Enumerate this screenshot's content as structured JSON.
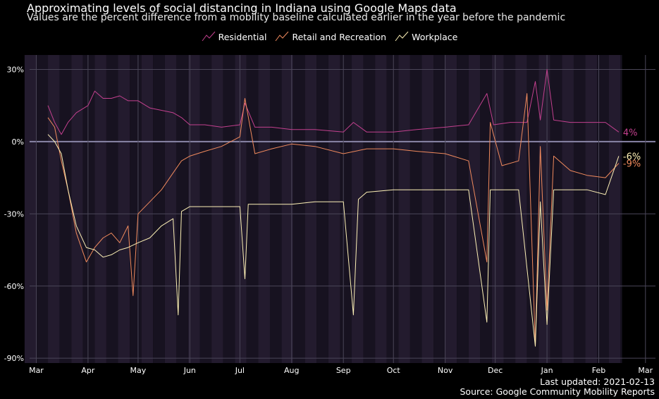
{
  "chart_data": {
    "type": "line",
    "title": "Approximating levels of social distancing in Indiana using Google Maps data",
    "subtitle": "Values are the percent difference from a mobility baseline calculated earlier in the year before the pandemic",
    "ylim": [
      -92,
      36
    ],
    "y_ticks": [
      {
        "value": 30,
        "label": "30%"
      },
      {
        "value": 0,
        "label": "0%"
      },
      {
        "value": -30,
        "label": "-30%"
      },
      {
        "value": -60,
        "label": "-60%"
      },
      {
        "value": -90,
        "label": "-90%"
      }
    ],
    "x_range": [
      "2020-02-26",
      "2021-03-07"
    ],
    "x_ticks": [
      {
        "date": "2020-03-01",
        "label": "Mar"
      },
      {
        "date": "2020-04-01",
        "label": "Apr"
      },
      {
        "date": "2020-05-01",
        "label": "May"
      },
      {
        "date": "2020-06-01",
        "label": "Jun"
      },
      {
        "date": "2020-07-01",
        "label": "Jul"
      },
      {
        "date": "2020-08-01",
        "label": "Aug"
      },
      {
        "date": "2020-09-01",
        "label": "Sep"
      },
      {
        "date": "2020-10-01",
        "label": "Oct"
      },
      {
        "date": "2020-11-01",
        "label": "Nov"
      },
      {
        "date": "2020-12-01",
        "label": "Dec"
      },
      {
        "date": "2021-01-01",
        "label": "Jan"
      },
      {
        "date": "2021-02-01",
        "label": "Feb"
      },
      {
        "date": "2021-03-01",
        "label": "Mar"
      }
    ],
    "background_bands": "weekly",
    "series": [
      {
        "name": "Residential",
        "color": "#c2408e",
        "end_label": "4%",
        "points": [
          [
            "2020-03-08",
            15
          ],
          [
            "2020-03-12",
            8
          ],
          [
            "2020-03-16",
            3
          ],
          [
            "2020-03-20",
            8
          ],
          [
            "2020-03-25",
            12
          ],
          [
            "2020-04-01",
            15
          ],
          [
            "2020-04-05",
            21
          ],
          [
            "2020-04-10",
            18
          ],
          [
            "2020-04-15",
            18
          ],
          [
            "2020-04-20",
            19
          ],
          [
            "2020-04-25",
            17
          ],
          [
            "2020-05-01",
            17
          ],
          [
            "2020-05-08",
            14
          ],
          [
            "2020-05-15",
            13
          ],
          [
            "2020-05-22",
            12
          ],
          [
            "2020-05-27",
            10
          ],
          [
            "2020-06-01",
            7
          ],
          [
            "2020-06-10",
            7
          ],
          [
            "2020-06-20",
            6
          ],
          [
            "2020-07-01",
            7
          ],
          [
            "2020-07-04",
            16
          ],
          [
            "2020-07-10",
            6
          ],
          [
            "2020-07-20",
            6
          ],
          [
            "2020-08-01",
            5
          ],
          [
            "2020-08-15",
            5
          ],
          [
            "2020-09-01",
            4
          ],
          [
            "2020-09-07",
            8
          ],
          [
            "2020-09-15",
            4
          ],
          [
            "2020-10-01",
            4
          ],
          [
            "2020-10-15",
            5
          ],
          [
            "2020-11-01",
            6
          ],
          [
            "2020-11-15",
            7
          ],
          [
            "2020-11-26",
            20
          ],
          [
            "2020-11-30",
            7
          ],
          [
            "2020-12-10",
            8
          ],
          [
            "2020-12-20",
            8
          ],
          [
            "2020-12-25",
            25
          ],
          [
            "2020-12-28",
            9
          ],
          [
            "2021-01-01",
            30
          ],
          [
            "2021-01-05",
            9
          ],
          [
            "2021-01-15",
            8
          ],
          [
            "2021-01-25",
            8
          ],
          [
            "2021-02-05",
            8
          ],
          [
            "2021-02-13",
            4
          ]
        ]
      },
      {
        "name": "Retail and Recreation",
        "color": "#f08a5d",
        "end_label": "-9%",
        "points": [
          [
            "2020-03-08",
            10
          ],
          [
            "2020-03-12",
            6
          ],
          [
            "2020-03-16",
            -8
          ],
          [
            "2020-03-20",
            -20
          ],
          [
            "2020-03-25",
            -38
          ],
          [
            "2020-03-31",
            -50
          ],
          [
            "2020-04-05",
            -44
          ],
          [
            "2020-04-10",
            -40
          ],
          [
            "2020-04-15",
            -38
          ],
          [
            "2020-04-20",
            -42
          ],
          [
            "2020-04-25",
            -35
          ],
          [
            "2020-04-28",
            -64
          ],
          [
            "2020-05-01",
            -30
          ],
          [
            "2020-05-08",
            -25
          ],
          [
            "2020-05-15",
            -20
          ],
          [
            "2020-05-22",
            -13
          ],
          [
            "2020-05-27",
            -8
          ],
          [
            "2020-06-01",
            -6
          ],
          [
            "2020-06-10",
            -4
          ],
          [
            "2020-06-20",
            -2
          ],
          [
            "2020-07-01",
            2
          ],
          [
            "2020-07-04",
            18
          ],
          [
            "2020-07-10",
            -5
          ],
          [
            "2020-07-20",
            -3
          ],
          [
            "2020-08-01",
            -1
          ],
          [
            "2020-08-15",
            -2
          ],
          [
            "2020-09-01",
            -5
          ],
          [
            "2020-09-15",
            -3
          ],
          [
            "2020-10-01",
            -3
          ],
          [
            "2020-10-15",
            -4
          ],
          [
            "2020-11-01",
            -5
          ],
          [
            "2020-11-15",
            -8
          ],
          [
            "2020-11-26",
            -50
          ],
          [
            "2020-11-28",
            8
          ],
          [
            "2020-12-05",
            -10
          ],
          [
            "2020-12-15",
            -8
          ],
          [
            "2020-12-20",
            20
          ],
          [
            "2020-12-25",
            -85
          ],
          [
            "2020-12-28",
            -2
          ],
          [
            "2021-01-01",
            -70
          ],
          [
            "2021-01-05",
            -6
          ],
          [
            "2021-01-15",
            -12
          ],
          [
            "2021-01-25",
            -14
          ],
          [
            "2021-02-05",
            -15
          ],
          [
            "2021-02-13",
            -9
          ]
        ]
      },
      {
        "name": "Workplace",
        "color": "#fcf0b5",
        "end_label": "-6%",
        "points": [
          [
            "2020-03-08",
            3
          ],
          [
            "2020-03-12",
            0
          ],
          [
            "2020-03-16",
            -5
          ],
          [
            "2020-03-20",
            -20
          ],
          [
            "2020-03-25",
            -35
          ],
          [
            "2020-03-31",
            -44
          ],
          [
            "2020-04-05",
            -45
          ],
          [
            "2020-04-10",
            -48
          ],
          [
            "2020-04-15",
            -47
          ],
          [
            "2020-04-20",
            -45
          ],
          [
            "2020-04-25",
            -44
          ],
          [
            "2020-05-01",
            -42
          ],
          [
            "2020-05-08",
            -40
          ],
          [
            "2020-05-15",
            -35
          ],
          [
            "2020-05-22",
            -32
          ],
          [
            "2020-05-25",
            -72
          ],
          [
            "2020-05-27",
            -29
          ],
          [
            "2020-06-01",
            -27
          ],
          [
            "2020-06-10",
            -27
          ],
          [
            "2020-06-20",
            -27
          ],
          [
            "2020-07-01",
            -27
          ],
          [
            "2020-07-04",
            -57
          ],
          [
            "2020-07-06",
            -26
          ],
          [
            "2020-07-20",
            -26
          ],
          [
            "2020-08-01",
            -26
          ],
          [
            "2020-08-15",
            -25
          ],
          [
            "2020-09-01",
            -25
          ],
          [
            "2020-09-07",
            -72
          ],
          [
            "2020-09-10",
            -24
          ],
          [
            "2020-09-15",
            -21
          ],
          [
            "2020-10-01",
            -20
          ],
          [
            "2020-10-15",
            -20
          ],
          [
            "2020-11-01",
            -20
          ],
          [
            "2020-11-15",
            -20
          ],
          [
            "2020-11-26",
            -75
          ],
          [
            "2020-11-28",
            -20
          ],
          [
            "2020-12-05",
            -20
          ],
          [
            "2020-12-15",
            -20
          ],
          [
            "2020-12-25",
            -85
          ],
          [
            "2020-12-28",
            -25
          ],
          [
            "2021-01-01",
            -76
          ],
          [
            "2021-01-05",
            -20
          ],
          [
            "2021-01-15",
            -20
          ],
          [
            "2021-01-25",
            -20
          ],
          [
            "2021-02-05",
            -22
          ],
          [
            "2021-02-13",
            -6
          ]
        ]
      }
    ]
  },
  "footer": {
    "last_updated": "Last updated: 2021-02-13",
    "source": "Source: Google Community Mobility Reports"
  }
}
